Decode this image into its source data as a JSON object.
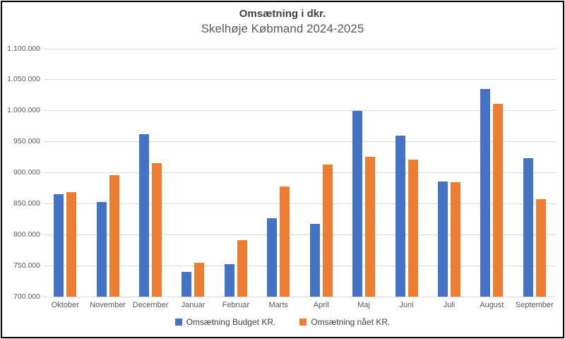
{
  "window": {
    "background_color": "#ffffff",
    "border_color": "#000000"
  },
  "chart_data": {
    "type": "bar",
    "title": "Omsætning i dkr.",
    "subtitle": "Skelhøje Købmand 2024-2025",
    "categories": [
      "Oktober",
      "November",
      "December",
      "Januar",
      "Februar",
      "Marts",
      "April",
      "Maj",
      "Juni",
      "Juli",
      "August",
      "September"
    ],
    "series": [
      {
        "key": "budget",
        "name": "Omsætning Budget KR.",
        "color": "#4472C4",
        "values": [
          865000,
          853000,
          962000,
          740000,
          753000,
          826000,
          817000,
          1000000,
          960000,
          886000,
          1035000,
          923000
        ]
      },
      {
        "key": "naaet",
        "name": "Omsætning nået KR.",
        "color": "#ED7D31",
        "values": [
          869000,
          896000,
          915000,
          755000,
          791000,
          878000,
          913000,
          926000,
          921000,
          885000,
          1011000,
          857000
        ]
      }
    ],
    "ylim": [
      700000,
      1100000
    ],
    "y_tick_step": 50000,
    "y_tick_labels": [
      "1.100.000",
      "1.050.000",
      "1.000.000",
      "950.000",
      "900.000",
      "850.000",
      "800.000",
      "750.000",
      "700.000"
    ],
    "grid": true,
    "gridline_color": "#D9D9D9",
    "axis_text_color": "#595959",
    "title_color": "#404040",
    "subtitle_color": "#595959",
    "legend_position": "bottom"
  }
}
